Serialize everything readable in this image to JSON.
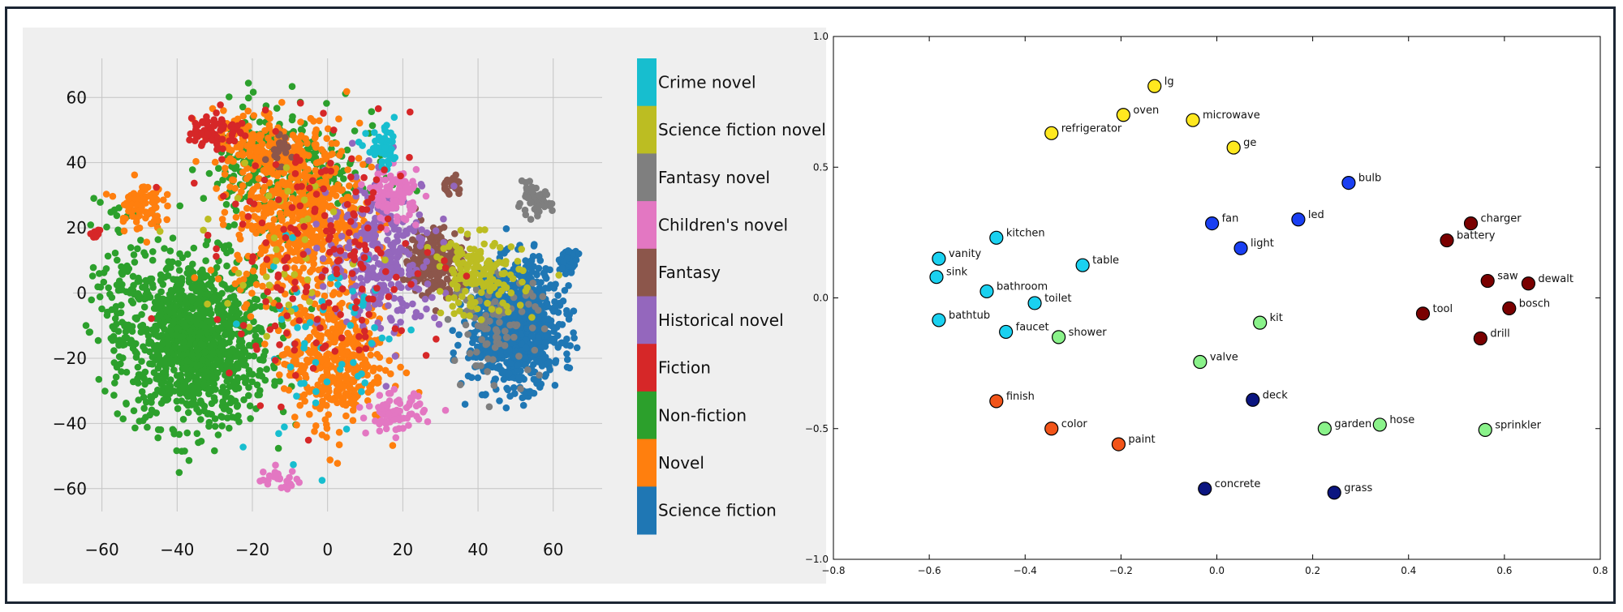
{
  "chart_data": [
    {
      "type": "scatter",
      "title": "",
      "xlabel": "",
      "ylabel": "",
      "xlim": [
        -72,
        73
      ],
      "ylim": [
        -70,
        72
      ],
      "xticks": [
        -60,
        -40,
        -20,
        0,
        20,
        40,
        60
      ],
      "yticks": [
        60,
        40,
        20,
        0,
        -20,
        -40,
        -60
      ],
      "xtick_labels": [
        "−60",
        "−40",
        "−20",
        "0",
        "20",
        "40",
        "60"
      ],
      "ytick_labels": [
        "60",
        "40",
        "20",
        "0",
        "−20",
        "−40",
        "−60"
      ],
      "grid": true,
      "legend_placement": "right",
      "legend": [
        {
          "name": "Crime novel",
          "color": "#17becf"
        },
        {
          "name": "Science fiction novel",
          "color": "#bcbd22"
        },
        {
          "name": "Fantasy novel",
          "color": "#7f7f7f"
        },
        {
          "name": "Children's novel",
          "color": "#e377c2"
        },
        {
          "name": "Fantasy",
          "color": "#8c564b"
        },
        {
          "name": "Historical novel",
          "color": "#9467bd"
        },
        {
          "name": "Fiction",
          "color": "#d62728"
        },
        {
          "name": "Non-fiction",
          "color": "#2ca02c"
        },
        {
          "name": "Novel",
          "color": "#ff7f0e"
        },
        {
          "name": "Science fiction",
          "color": "#1f77b4"
        }
      ],
      "clusters": [
        {
          "series": "Non-fiction",
          "center": [
            -35,
            -15
          ],
          "spread": [
            13,
            17
          ],
          "count": 1100
        },
        {
          "series": "Non-fiction",
          "center": [
            -18,
            40
          ],
          "spread": [
            10,
            12
          ],
          "count": 160
        },
        {
          "series": "Non-fiction",
          "center": [
            -3,
            35
          ],
          "spread": [
            12,
            12
          ],
          "count": 130
        },
        {
          "series": "Non-fiction",
          "center": [
            -55,
            5
          ],
          "spread": [
            6,
            18
          ],
          "count": 80
        },
        {
          "series": "Novel",
          "center": [
            -8,
            25
          ],
          "spread": [
            11,
            18
          ],
          "count": 650
        },
        {
          "series": "Novel",
          "center": [
            2,
            -20
          ],
          "spread": [
            9,
            14
          ],
          "count": 420
        },
        {
          "series": "Novel",
          "center": [
            -50,
            27
          ],
          "spread": [
            4,
            5
          ],
          "count": 80
        },
        {
          "series": "Novel",
          "center": [
            -20,
            45
          ],
          "spread": [
            7,
            7
          ],
          "count": 120
        },
        {
          "series": "Science fiction",
          "center": [
            50,
            -10
          ],
          "spread": [
            8,
            12
          ],
          "count": 1000
        },
        {
          "series": "Science fiction",
          "center": [
            64,
            10
          ],
          "spread": [
            1.5,
            2
          ],
          "count": 70
        },
        {
          "series": "Fantasy",
          "center": [
            28,
            10
          ],
          "spread": [
            5,
            7
          ],
          "count": 260
        },
        {
          "series": "Fantasy",
          "center": [
            33,
            33
          ],
          "spread": [
            2,
            2
          ],
          "count": 25
        },
        {
          "series": "Fantasy",
          "center": [
            -14,
            44
          ],
          "spread": [
            3,
            3
          ],
          "count": 20
        },
        {
          "series": "Fantasy novel",
          "center": [
            55,
            28
          ],
          "spread": [
            3,
            3
          ],
          "count": 60
        },
        {
          "series": "Fantasy novel",
          "center": [
            45,
            -10
          ],
          "spread": [
            8,
            10
          ],
          "count": 90
        },
        {
          "series": "Historical novel",
          "center": [
            15,
            12
          ],
          "spread": [
            10,
            16
          ],
          "count": 300
        },
        {
          "series": "Children's novel",
          "center": [
            18,
            30
          ],
          "spread": [
            4,
            5
          ],
          "count": 100
        },
        {
          "series": "Children's novel",
          "center": [
            18,
            -37
          ],
          "spread": [
            5,
            4
          ],
          "count": 80
        },
        {
          "series": "Children's novel",
          "center": [
            -13,
            -57
          ],
          "spread": [
            4,
            2
          ],
          "count": 25
        },
        {
          "series": "Crime novel",
          "center": [
            15,
            44
          ],
          "spread": [
            3,
            4
          ],
          "count": 50
        },
        {
          "series": "Crime novel",
          "center": [
            0,
            -15
          ],
          "spread": [
            14,
            25
          ],
          "count": 60
        },
        {
          "series": "Science fiction novel",
          "center": [
            40,
            5
          ],
          "spread": [
            8,
            8
          ],
          "count": 150
        },
        {
          "series": "Science fiction novel",
          "center": [
            -10,
            15
          ],
          "spread": [
            15,
            20
          ],
          "count": 40
        },
        {
          "series": "Fiction",
          "center": [
            -30,
            50
          ],
          "spread": [
            5,
            4
          ],
          "count": 70
        },
        {
          "series": "Fiction",
          "center": [
            0,
            10
          ],
          "spread": [
            20,
            25
          ],
          "count": 180
        },
        {
          "series": "Fiction",
          "center": [
            -62,
            18
          ],
          "spread": [
            1,
            1
          ],
          "count": 10
        }
      ]
    },
    {
      "type": "scatter",
      "title": "",
      "xlabel": "",
      "ylabel": "",
      "xlim": [
        -0.8,
        0.8
      ],
      "ylim": [
        -1.0,
        1.0
      ],
      "xticks": [
        -0.8,
        -0.6,
        -0.4,
        -0.2,
        0.0,
        0.2,
        0.4,
        0.6,
        0.8
      ],
      "yticks": [
        1.0,
        0.5,
        0.0,
        -0.5,
        -1.0
      ],
      "xtick_labels": [
        "−0.8",
        "−0.6",
        "−0.4",
        "−0.2",
        "0.0",
        "0.2",
        "0.4",
        "0.6",
        "0.8"
      ],
      "ytick_labels": [
        "1.0",
        "0.5",
        "0.0",
        "−0.5",
        "−1.0"
      ],
      "grid": false,
      "points": [
        {
          "label": "lg",
          "x": -0.13,
          "y": 0.81,
          "color": "#ffe81f"
        },
        {
          "label": "oven",
          "x": -0.195,
          "y": 0.7,
          "color": "#ffe81f"
        },
        {
          "label": "microwave",
          "x": -0.05,
          "y": 0.68,
          "color": "#ffe81f"
        },
        {
          "label": "refrigerator",
          "x": -0.345,
          "y": 0.63,
          "color": "#ffe81f"
        },
        {
          "label": "ge",
          "x": 0.035,
          "y": 0.575,
          "color": "#ffe81f"
        },
        {
          "label": "bulb",
          "x": 0.275,
          "y": 0.44,
          "color": "#1a3ff2"
        },
        {
          "label": "led",
          "x": 0.17,
          "y": 0.3,
          "color": "#1a3ff2"
        },
        {
          "label": "fan",
          "x": -0.01,
          "y": 0.285,
          "color": "#1a3ff2"
        },
        {
          "label": "light",
          "x": 0.05,
          "y": 0.19,
          "color": "#1a3ff2"
        },
        {
          "label": "charger",
          "x": 0.53,
          "y": 0.285,
          "color": "#7a0000"
        },
        {
          "label": "battery",
          "x": 0.48,
          "y": 0.22,
          "color": "#7a0000"
        },
        {
          "label": "saw",
          "x": 0.565,
          "y": 0.065,
          "color": "#7a0000"
        },
        {
          "label": "dewalt",
          "x": 0.65,
          "y": 0.055,
          "color": "#7a0000"
        },
        {
          "label": "bosch",
          "x": 0.61,
          "y": -0.04,
          "color": "#7a0000"
        },
        {
          "label": "tool",
          "x": 0.43,
          "y": -0.06,
          "color": "#7a0000"
        },
        {
          "label": "drill",
          "x": 0.55,
          "y": -0.155,
          "color": "#7a0000"
        },
        {
          "label": "kitchen",
          "x": -0.46,
          "y": 0.23,
          "color": "#1ad1f0"
        },
        {
          "label": "vanity",
          "x": -0.58,
          "y": 0.15,
          "color": "#1ad1f0"
        },
        {
          "label": "table",
          "x": -0.28,
          "y": 0.125,
          "color": "#1ad1f0"
        },
        {
          "label": "sink",
          "x": -0.585,
          "y": 0.08,
          "color": "#1ad1f0"
        },
        {
          "label": "bathroom",
          "x": -0.48,
          "y": 0.025,
          "color": "#1ad1f0"
        },
        {
          "label": "toilet",
          "x": -0.38,
          "y": -0.02,
          "color": "#1ad1f0"
        },
        {
          "label": "bathtub",
          "x": -0.58,
          "y": -0.085,
          "color": "#1ad1f0"
        },
        {
          "label": "faucet",
          "x": -0.44,
          "y": -0.13,
          "color": "#1ad1f0"
        },
        {
          "label": "shower",
          "x": -0.33,
          "y": -0.15,
          "color": "#8af28a"
        },
        {
          "label": "kit",
          "x": 0.09,
          "y": -0.095,
          "color": "#8af28a"
        },
        {
          "label": "valve",
          "x": -0.035,
          "y": -0.245,
          "color": "#8af28a"
        },
        {
          "label": "garden",
          "x": 0.225,
          "y": -0.5,
          "color": "#8af28a"
        },
        {
          "label": "hose",
          "x": 0.34,
          "y": -0.485,
          "color": "#8af28a"
        },
        {
          "label": "sprinkler",
          "x": 0.56,
          "y": -0.505,
          "color": "#8af28a"
        },
        {
          "label": "deck",
          "x": 0.075,
          "y": -0.39,
          "color": "#0b1580"
        },
        {
          "label": "concrete",
          "x": -0.025,
          "y": -0.73,
          "color": "#0b1580"
        },
        {
          "label": "grass",
          "x": 0.245,
          "y": -0.745,
          "color": "#0b1580"
        },
        {
          "label": "finish",
          "x": -0.46,
          "y": -0.395,
          "color": "#f25419"
        },
        {
          "label": "color",
          "x": -0.345,
          "y": -0.5,
          "color": "#f25419"
        },
        {
          "label": "paint",
          "x": -0.205,
          "y": -0.56,
          "color": "#f25419"
        }
      ]
    }
  ]
}
